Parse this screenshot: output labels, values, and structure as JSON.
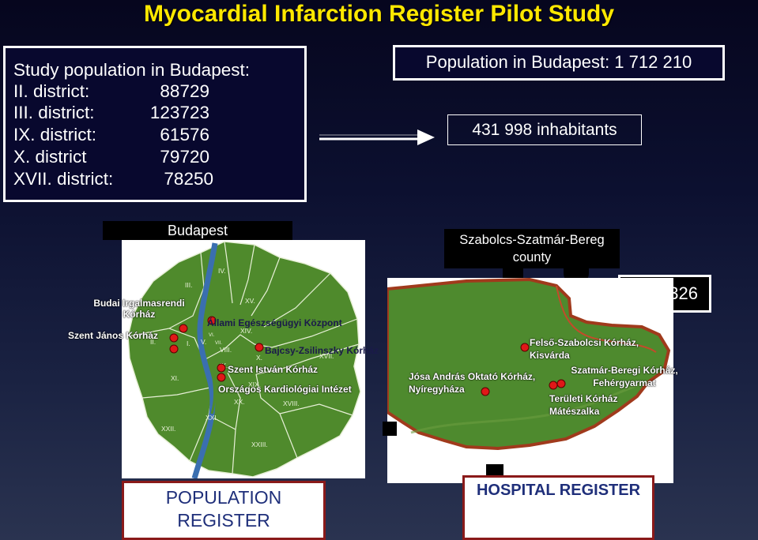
{
  "title": "Myocardial Infarction Register Pilot Study",
  "study_population": {
    "heading": "Study population in Budapest:",
    "districts": [
      {
        "name": "II. district:",
        "value": "88729"
      },
      {
        "name": "III. district:",
        "value": "123723"
      },
      {
        "name": "IX. district:",
        "value": "61576"
      },
      {
        "name": "X. district",
        "value": "79720"
      },
      {
        "name": "XVII. district:",
        "value": "78250"
      }
    ]
  },
  "population_total": "Population in Budapest: 1 712 210",
  "inhabitants": "431 998 inhabitants",
  "budapest_map": {
    "label": "Budapest",
    "district_numbers": [
      "IV.",
      "III.",
      "XV.",
      "XIV.",
      "II.",
      "I.",
      "V.",
      "VI.",
      "VII.",
      "VIII.",
      "X.",
      "XVII.",
      "XI.",
      "IX.",
      "XX.",
      "XIX.",
      "XVIII.",
      "XXI.",
      "XXII.",
      "XXIII."
    ],
    "hospitals": [
      {
        "label": "Budai Irgalmasrendi Kórház"
      },
      {
        "label": "Szent János Kórház"
      },
      {
        "label": "Állami Egészségügyi Központ"
      },
      {
        "label": "Bajcsy-Zsilinszky Kórház"
      },
      {
        "label": "Szent István Kórház"
      },
      {
        "label": "Országos Kardiológiai Intézet"
      }
    ]
  },
  "county_map": {
    "label": "Szabolcs-Szatmár-Bereg county",
    "partial_value": "326",
    "hospitals": [
      {
        "label": "Felső-Szabolcsi Kórház, Kisvárda"
      },
      {
        "label": "Jósa András Oktató Kórház, Nyíregyháza"
      },
      {
        "label": "Szatmár-Beregi Kórház, Fehérgyarmat"
      },
      {
        "label": "Területi Kórház Mátészalka"
      }
    ]
  },
  "population_register": "POPULATION REGISTER",
  "hospital_register": "HOSPITAL REGISTER",
  "colors": {
    "title": "#ffe800",
    "map_fill": "#4f8a2c",
    "marker": "#e01818",
    "river": "#3a6fb0"
  }
}
